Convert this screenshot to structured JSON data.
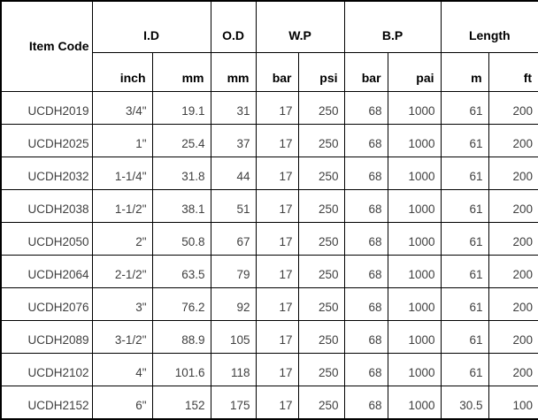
{
  "table": {
    "header": {
      "item_code": "Item Code",
      "groups": [
        {
          "label": "I.D"
        },
        {
          "label": "O.D"
        },
        {
          "label": "W.P"
        },
        {
          "label": "B.P"
        },
        {
          "label": "Length"
        }
      ],
      "units": [
        "inch",
        "mm",
        "mm",
        "bar",
        "psi",
        "bar",
        "pai",
        "m",
        "ft"
      ]
    },
    "rows": [
      [
        "UCDH2019",
        "3/4\"",
        "19.1",
        "31",
        "17",
        "250",
        "68",
        "1000",
        "61",
        "200"
      ],
      [
        "UCDH2025",
        "1\"",
        "25.4",
        "37",
        "17",
        "250",
        "68",
        "1000",
        "61",
        "200"
      ],
      [
        "UCDH2032",
        "1-1/4\"",
        "31.8",
        "44",
        "17",
        "250",
        "68",
        "1000",
        "61",
        "200"
      ],
      [
        "UCDH2038",
        "1-1/2\"",
        "38.1",
        "51",
        "17",
        "250",
        "68",
        "1000",
        "61",
        "200"
      ],
      [
        "UCDH2050",
        "2\"",
        "50.8",
        "67",
        "17",
        "250",
        "68",
        "1000",
        "61",
        "200"
      ],
      [
        "UCDH2064",
        "2-1/2\"",
        "63.5",
        "79",
        "17",
        "250",
        "68",
        "1000",
        "61",
        "200"
      ],
      [
        "UCDH2076",
        "3\"",
        "76.2",
        "92",
        "17",
        "250",
        "68",
        "1000",
        "61",
        "200"
      ],
      [
        "UCDH2089",
        "3-1/2\"",
        "88.9",
        "105",
        "17",
        "250",
        "68",
        "1000",
        "61",
        "200"
      ],
      [
        "UCDH2102",
        "4\"",
        "101.6",
        "118",
        "17",
        "250",
        "68",
        "1000",
        "61",
        "200"
      ],
      [
        "UCDH2152",
        "6\"",
        "152",
        "175",
        "17",
        "250",
        "68",
        "1000",
        "30.5",
        "100"
      ]
    ],
    "colors": {
      "border": "#000000",
      "header_text": "#000000",
      "data_text": "#3f3f3f",
      "background": "#ffffff"
    }
  }
}
